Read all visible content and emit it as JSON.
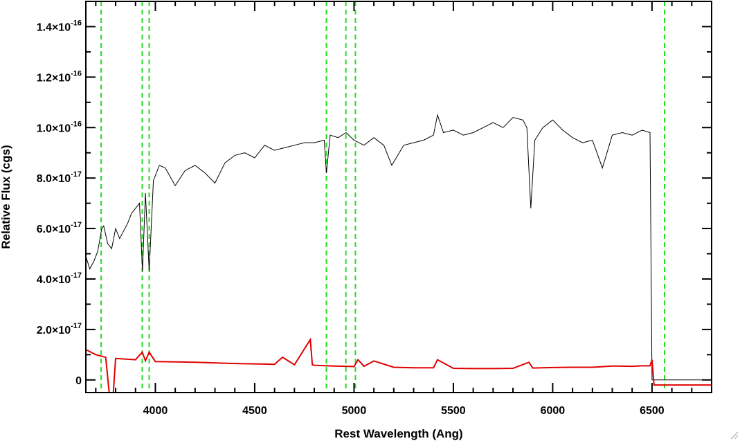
{
  "chart_data": {
    "type": "line",
    "xlabel": "Rest Wavelength (Ang)",
    "ylabel": "Relative Flux (cgs)",
    "xlim": [
      3650,
      6800
    ],
    "ylim": [
      -5e-18,
      1.5e-16
    ],
    "x_ticks": [
      {
        "value": 4000,
        "label": "4000"
      },
      {
        "value": 4500,
        "label": "4500"
      },
      {
        "value": 5000,
        "label": "5000"
      },
      {
        "value": 5500,
        "label": "5500"
      },
      {
        "value": 6000,
        "label": "6000"
      },
      {
        "value": 6500,
        "label": "6500"
      }
    ],
    "y_ticks": [
      {
        "value": 0,
        "mant": "0",
        "exp": ""
      },
      {
        "value": 2e-17,
        "mant": "2.0×10",
        "exp": "-17"
      },
      {
        "value": 4e-17,
        "mant": "4.0×10",
        "exp": "-17"
      },
      {
        "value": 6e-17,
        "mant": "6.0×10",
        "exp": "-17"
      },
      {
        "value": 8e-17,
        "mant": "8.0×10",
        "exp": "-17"
      },
      {
        "value": 1e-16,
        "mant": "1.0×10",
        "exp": "-16"
      },
      {
        "value": 1.2e-16,
        "mant": "1.2×10",
        "exp": "-16"
      },
      {
        "value": 1.4e-16,
        "mant": "1.4×10",
        "exp": "-16"
      }
    ],
    "x_minor_step": 100,
    "y_minor_step": 1e-17,
    "vlines": [
      3727,
      3934,
      3969,
      4861,
      4959,
      5007,
      6563
    ],
    "series": [
      {
        "color": "#000000",
        "x": [
          3650,
          3670,
          3690,
          3710,
          3730,
          3740,
          3760,
          3780,
          3800,
          3820,
          3840,
          3860,
          3880,
          3900,
          3920,
          3935,
          3950,
          3969,
          3990,
          4020,
          4050,
          4100,
          4150,
          4200,
          4250,
          4300,
          4350,
          4400,
          4450,
          4500,
          4550,
          4600,
          4650,
          4700,
          4750,
          4800,
          4850,
          4861,
          4880,
          4920,
          4960,
          5000,
          5050,
          5100,
          5150,
          5190,
          5250,
          5300,
          5350,
          5400,
          5420,
          5450,
          5500,
          5550,
          5600,
          5650,
          5700,
          5750,
          5800,
          5850,
          5870,
          5890,
          5910,
          5950,
          6000,
          6050,
          6100,
          6150,
          6200,
          6250,
          6300,
          6350,
          6400,
          6450,
          6490,
          6500,
          6510,
          6600,
          6800
        ],
        "y": [
          4.9e-17,
          4.4e-17,
          4.7e-17,
          5.1e-17,
          6e-17,
          6.1e-17,
          5.4e-17,
          5.2e-17,
          6e-17,
          5.6e-17,
          5.9e-17,
          6.2e-17,
          6.6e-17,
          6.8e-17,
          7e-17,
          4.3e-17,
          7.4e-17,
          4.3e-17,
          7.9e-17,
          8.5e-17,
          8.4e-17,
          7.7e-17,
          8.3e-17,
          8.5e-17,
          8.2e-17,
          7.8e-17,
          8.6e-17,
          8.9e-17,
          9e-17,
          8.8e-17,
          9.3e-17,
          9.1e-17,
          9.2e-17,
          9.3e-17,
          9.4e-17,
          9.4e-17,
          9.5e-17,
          8.2e-17,
          9.7e-17,
          9.6e-17,
          9.8e-17,
          9.5e-17,
          9.3e-17,
          9.6e-17,
          9.3e-17,
          8.5e-17,
          9.3e-17,
          9.4e-17,
          9.5e-17,
          9.7e-17,
          1.05e-16,
          9.8e-17,
          9.9e-17,
          9.7e-17,
          9.8e-17,
          1e-16,
          1.02e-16,
          1e-16,
          1.04e-16,
          1.03e-16,
          1e-16,
          6.8e-17,
          9.5e-17,
          1e-16,
          1.03e-16,
          9.9e-17,
          9.6e-17,
          9.4e-17,
          9.5e-17,
          8.4e-17,
          9.7e-17,
          9.8e-17,
          9.7e-17,
          9.9e-17,
          9.8e-17,
          0,
          0,
          0,
          0
        ]
      },
      {
        "color": "#e00000",
        "x": [
          3650,
          3700,
          3750,
          3780,
          3800,
          3900,
          3934,
          3950,
          3969,
          4000,
          4200,
          4400,
          4600,
          4640,
          4700,
          4780,
          4790,
          4800,
          4900,
          5000,
          5020,
          5050,
          5100,
          5200,
          5300,
          5400,
          5420,
          5500,
          5600,
          5700,
          5800,
          5880,
          5900,
          6000,
          6100,
          6200,
          6300,
          6400,
          6450,
          6490,
          6500,
          6510,
          6800
        ],
        "y": [
          1.2e-17,
          1e-17,
          9e-18,
          -1.5e-17,
          8.5e-18,
          8e-18,
          1.1e-17,
          7.6e-18,
          1.1e-17,
          7.3e-18,
          7e-18,
          6.5e-18,
          6.2e-18,
          9e-18,
          6e-18,
          1.6e-17,
          6e-18,
          5.8e-18,
          5.5e-18,
          5.3e-18,
          8e-18,
          5.4e-18,
          7.5e-18,
          5e-18,
          4.8e-18,
          4.8e-18,
          8e-18,
          4.6e-18,
          4.5e-18,
          4.5e-18,
          4.6e-18,
          7e-18,
          4.7e-18,
          4.9e-18,
          5e-18,
          5e-18,
          5.5e-18,
          5.4e-18,
          5.6e-18,
          5.6e-18,
          8e-18,
          -2e-18,
          -2e-18
        ]
      }
    ]
  }
}
